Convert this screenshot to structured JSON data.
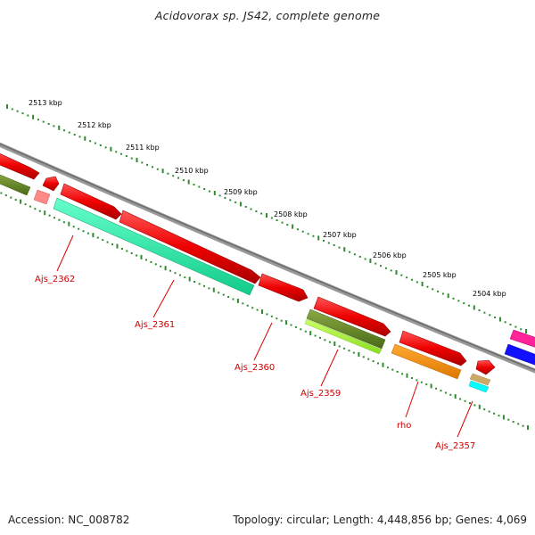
{
  "title": "Acidovorax sp. JS42, complete genome",
  "footer": {
    "accession": "Accession: NC_008782",
    "topology": "Topology: circular; Length: 4,448,856 bp; Genes: 4,069"
  },
  "scale_labels": [
    "2513 kbp",
    "2512 kbp",
    "2511 kbp",
    "2510 kbp",
    "2509 kbp",
    "2508 kbp",
    "2507 kbp",
    "2506 kbp",
    "2505 kbp",
    "2504 kbp"
  ],
  "gene_labels": [
    "Ajs_2362",
    "Ajs_2361",
    "Ajs_2360",
    "Ajs_2359",
    "rho",
    "Ajs_2357"
  ],
  "colors": {
    "gene_red": "#e00000",
    "backbone": "#888888",
    "scale_green": "#2e8b2e",
    "label_red": "#cc0000",
    "cog_teal": "#33ffaa",
    "cog_olive": "#6b8e23",
    "cog_lime": "#aaff33",
    "cog_orange": "#ff8800",
    "cog_cyan": "#00ffff",
    "cog_pink": "#ff2299",
    "cog_blue": "#1111ff",
    "cog_salmon": "#ff7777",
    "cog_tan": "#ccaa66"
  }
}
